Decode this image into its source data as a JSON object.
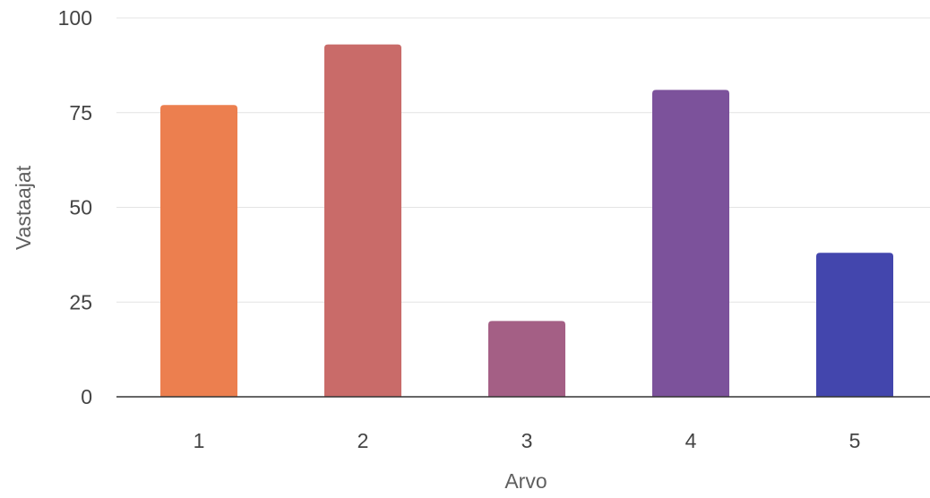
{
  "chart_data": {
    "type": "bar",
    "title": "",
    "xlabel": "Arvo",
    "ylabel": "Vastaajat",
    "categories": [
      "1",
      "2",
      "3",
      "4",
      "5"
    ],
    "values": [
      77,
      93,
      20,
      81,
      38
    ],
    "bar_colors": [
      "#ec7f4f",
      "#c96b69",
      "#a45f85",
      "#7c529b",
      "#4346ad"
    ],
    "ylim": [
      0,
      100
    ],
    "yticks": [
      "0",
      "25",
      "50",
      "75",
      "100"
    ],
    "grid": true,
    "legend": "none"
  }
}
